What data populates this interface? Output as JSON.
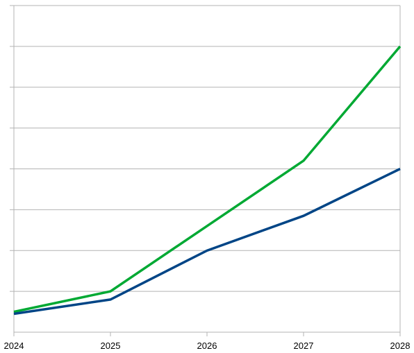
{
  "chart_data": {
    "type": "line",
    "title": "",
    "xlabel": "",
    "ylabel": "",
    "x": [
      "2024",
      "2025",
      "2026",
      "2027",
      "2028"
    ],
    "ylim": [
      0,
      8
    ],
    "y_gridlines": 8,
    "y_tick_labels_shown": false,
    "grid": true,
    "legend": "none",
    "series": [
      {
        "color": "#00a933",
        "values": [
          0.5,
          1.0,
          2.6,
          4.2,
          7.0
        ]
      },
      {
        "color": "#004586",
        "values": [
          0.45,
          0.8,
          2.0,
          2.85,
          4.0
        ]
      }
    ]
  }
}
